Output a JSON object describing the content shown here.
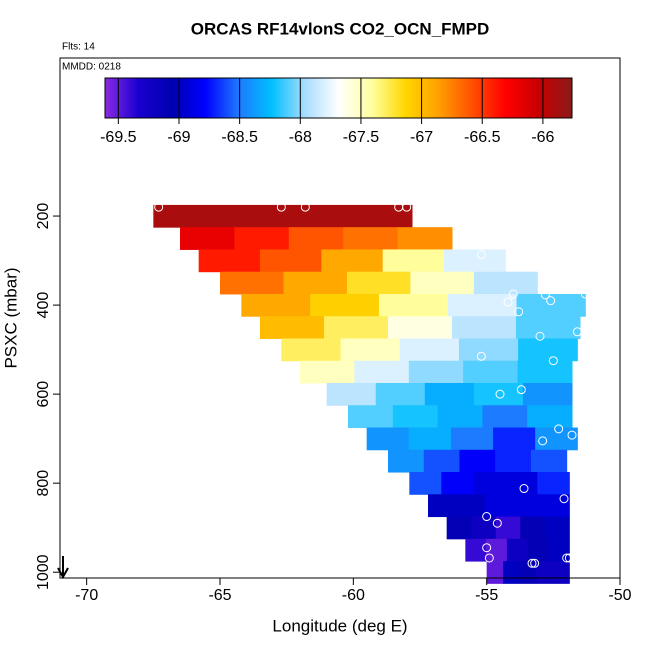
{
  "chart_data": {
    "type": "heatmap-profile",
    "title": "ORCAS RF14vlonS CO2_OCN_FMPD",
    "subtitle": "Flts: 14",
    "annotation": "MMDD: 0218",
    "x_label": "Longitude (deg E)",
    "y_label": "PSXC (mbar)",
    "xlim": [
      -71,
      -50
    ],
    "xticks": [
      -70,
      -65,
      -60,
      -55,
      -50
    ],
    "ylim": [
      1013,
      -155
    ],
    "yticks": [
      200,
      400,
      600,
      800,
      1000
    ],
    "row_height": 50,
    "rows": [
      {
        "pressure": 200,
        "lon_range": [
          -67.5,
          -57.8
        ],
        "values": [
          -65.9,
          -65.9,
          -65.9,
          -65.9,
          -65.9
        ]
      },
      {
        "pressure": 250,
        "lon_range": [
          -66.5,
          -56.3
        ],
        "values": [
          -66.2,
          -66.4,
          -66.6,
          -66.7,
          -66.8
        ]
      },
      {
        "pressure": 300,
        "lon_range": [
          -65.8,
          -54.3
        ],
        "values": [
          -66.4,
          -66.6,
          -66.9,
          -67.4,
          -67.8
        ]
      },
      {
        "pressure": 350,
        "lon_range": [
          -65.0,
          -53.1
        ],
        "values": [
          -66.7,
          -66.9,
          -67.2,
          -67.5,
          -67.9
        ]
      },
      {
        "pressure": 400,
        "lon_range": [
          -64.2,
          -51.3
        ],
        "values": [
          -66.9,
          -67.1,
          -67.4,
          -67.8,
          -68.1
        ]
      },
      {
        "pressure": 450,
        "lon_range": [
          -63.5,
          -51.5
        ],
        "values": [
          -67.0,
          -67.3,
          -67.6,
          -67.9,
          -68.1
        ]
      },
      {
        "pressure": 500,
        "lon_range": [
          -62.7,
          -51.6
        ],
        "values": [
          -67.3,
          -67.5,
          -67.8,
          -68.0,
          -68.2
        ]
      },
      {
        "pressure": 550,
        "lon_range": [
          -62.0,
          -51.8
        ],
        "values": [
          -67.5,
          -67.8,
          -68.0,
          -68.1,
          -68.2
        ]
      },
      {
        "pressure": 600,
        "lon_range": [
          -61.0,
          -51.8
        ],
        "values": [
          -67.9,
          -68.1,
          -68.3,
          -68.2,
          -68.4
        ]
      },
      {
        "pressure": 650,
        "lon_range": [
          -60.2,
          -51.8
        ],
        "values": [
          -68.1,
          -68.2,
          -68.3,
          -68.5,
          -68.3
        ]
      },
      {
        "pressure": 700,
        "lon_range": [
          -59.5,
          -51.6
        ],
        "values": [
          -68.4,
          -68.3,
          -68.5,
          -68.7,
          -68.4
        ]
      },
      {
        "pressure": 750,
        "lon_range": [
          -58.7,
          -52.0
        ],
        "values": [
          -68.4,
          -68.6,
          -68.8,
          -68.7,
          -68.6
        ]
      },
      {
        "pressure": 800,
        "lon_range": [
          -57.9,
          -51.9
        ],
        "values": [
          -68.6,
          -68.8,
          -68.9,
          -68.9,
          -68.7
        ]
      },
      {
        "pressure": 850,
        "lon_range": [
          -57.2,
          -51.9
        ],
        "values": [
          -69.0,
          -69.0,
          -68.9,
          -68.9,
          -68.9
        ]
      },
      {
        "pressure": 900,
        "lon_range": [
          -56.5,
          -51.9
        ],
        "values": [
          -69.1,
          -69.2,
          -69.4,
          -69.1,
          -69.0
        ]
      },
      {
        "pressure": 950,
        "lon_range": [
          -55.8,
          -51.9
        ],
        "values": [
          -69.4,
          -69.5,
          -69.2,
          -69.1,
          -69.0
        ]
      },
      {
        "pressure": 1000,
        "lon_range": [
          -55.0,
          -51.9
        ],
        "values": [
          -69.5,
          -69.0,
          -69.1,
          -69.2,
          -69.2
        ]
      }
    ],
    "points": {
      "color": "#ffffff",
      "x": [
        -67.3,
        -62.7,
        -61.8,
        -58.3,
        -58.0,
        -55.2,
        -54.2,
        -54.0,
        -53.8,
        -52.8,
        -52.6,
        -51.3,
        -51.6,
        -53.0,
        -55.2,
        -52.5,
        -53.7,
        -54.5,
        -52.3,
        -51.8,
        -52.9,
        -53.6,
        -52.1,
        -55.0,
        -54.6,
        -55.0,
        -54.9,
        -53.3,
        -53.2,
        -51.9,
        -52.0
      ],
      "y": [
        180,
        180,
        180,
        180,
        180,
        287,
        393,
        375,
        415,
        377,
        390,
        375,
        460,
        470,
        515,
        525,
        590,
        600,
        678,
        692,
        705,
        812,
        835,
        875,
        890,
        945,
        968,
        980,
        980,
        968,
        968
      ]
    },
    "colorbar": {
      "lim": [
        -69.61,
        -65.76
      ],
      "ticks": [
        -69.5,
        -69.0,
        -68.5,
        -68.0,
        -67.5,
        -67.0,
        -66.5,
        -66.0
      ],
      "colors": [
        "#8a2be2",
        "#1a00d0",
        "#0000b0",
        "#0000ff",
        "#1e78ff",
        "#00bfff",
        "#a8ddff",
        "#ffffff",
        "#ffffa0",
        "#ffd700",
        "#ffa000",
        "#ff5000",
        "#ff0000",
        "#c80000",
        "#8b1a1a"
      ]
    }
  }
}
